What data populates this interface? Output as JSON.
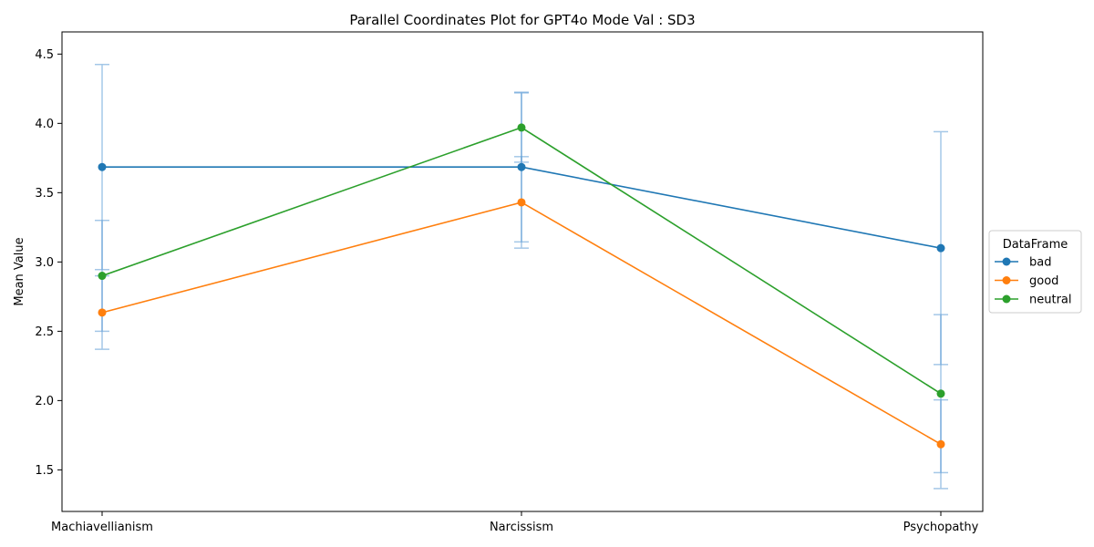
{
  "chart_data": {
    "type": "line",
    "title": "Parallel Coordinates Plot for GPT4o Mode Val : SD3",
    "xlabel": "",
    "ylabel": "Mean Value",
    "categories": [
      "Machiavellianism",
      "Narcissism",
      "Psychopathy"
    ],
    "ylim": [
      1.2,
      4.66
    ],
    "yticks": [
      1.5,
      2.0,
      2.5,
      3.0,
      3.5,
      4.0,
      4.5
    ],
    "ytick_labels": [
      "1.5",
      "2.0",
      "2.5",
      "3.0",
      "3.5",
      "4.0",
      "4.5"
    ],
    "grid": false,
    "legend": {
      "title": "DataFrame",
      "placement": "right"
    },
    "error_bar_color": "#5b9bd5",
    "series": [
      {
        "name": "bad",
        "color": "#1f77b4",
        "values": [
          3.685,
          3.685,
          3.1
        ],
        "errors": [
          0.74,
          0.54,
          0.84
        ]
      },
      {
        "name": "good",
        "color": "#ff7f0e",
        "values": [
          2.635,
          3.43,
          1.685
        ],
        "errors": [
          0.265,
          0.33,
          0.32
        ]
      },
      {
        "name": "neutral",
        "color": "#2ca02c",
        "values": [
          2.9,
          3.97,
          2.05
        ],
        "errors": [
          0.4,
          0.25,
          0.57
        ]
      }
    ]
  }
}
